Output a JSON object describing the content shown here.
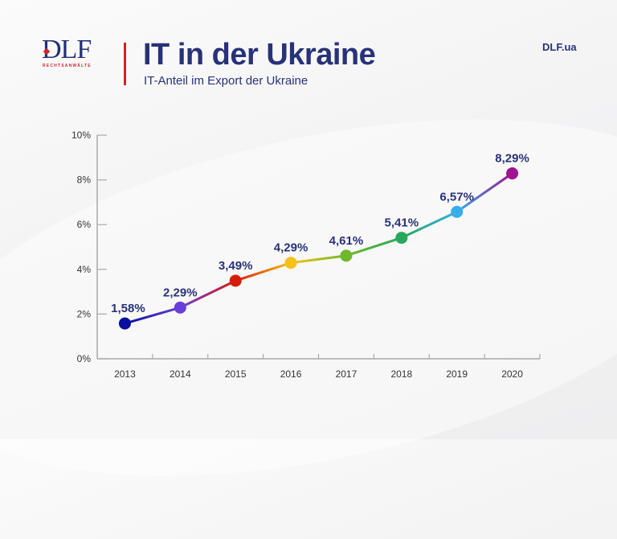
{
  "header": {
    "logo_text": "DLF",
    "logo_subtitle": "RECHTSANWÄLTE",
    "title": "IT in der Ukraine",
    "subtitle": "IT-Anteil im Export der Ukraine",
    "site": "DLF.ua"
  },
  "colors": {
    "brand_blue": "#283279",
    "brand_red": "#d7202b",
    "axis": "#a9a9a9"
  },
  "chart_data": {
    "type": "line",
    "title": "IT-Anteil im Export der Ukraine",
    "xlabel": "",
    "ylabel": "",
    "categories": [
      "2013",
      "2014",
      "2015",
      "2016",
      "2017",
      "2018",
      "2019",
      "2020"
    ],
    "values": [
      1.58,
      2.29,
      3.49,
      4.29,
      4.61,
      5.41,
      6.57,
      8.29
    ],
    "value_labels": [
      "1,58%",
      "2,29%",
      "3,49%",
      "4,29%",
      "4,61%",
      "5,41%",
      "6,57%",
      "8,29%"
    ],
    "point_colors": [
      "#0a0f9e",
      "#6a3fd6",
      "#d81c0c",
      "#f6c117",
      "#6dba2a",
      "#27a85a",
      "#35aeea",
      "#a0128f"
    ],
    "ylim": [
      0,
      10
    ],
    "yticks": [
      0,
      2,
      4,
      6,
      8,
      10
    ],
    "ytick_labels": [
      "0%",
      "2%",
      "4%",
      "6%",
      "8%",
      "10%"
    ],
    "grid": false,
    "legend": "none"
  }
}
